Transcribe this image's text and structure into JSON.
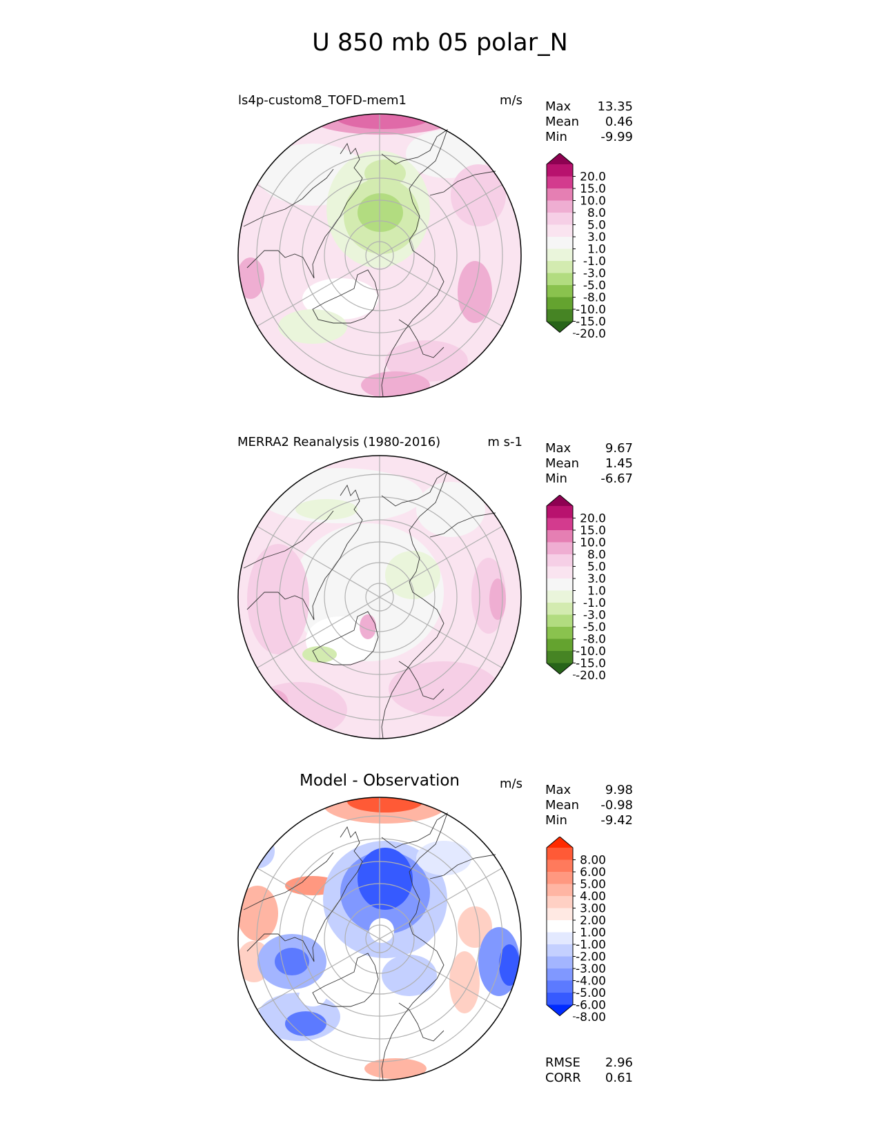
{
  "suptitle": "U 850 mb 05 polar_N",
  "panels": [
    {
      "title": "ls4p-custom8_TOFD-mem1",
      "units": "m/s",
      "stats": [
        {
          "label": "Max",
          "value": "13.35"
        },
        {
          "label": "Mean",
          "value": "0.46"
        },
        {
          "label": "Min",
          "value": "-9.99"
        }
      ],
      "colorbar": {
        "ticks": [
          "20.0",
          "15.0",
          "10.0",
          "8.0",
          "5.0",
          "3.0",
          "1.0",
          "-1.0",
          "-3.0",
          "-5.0",
          "-8.0",
          "-10.0",
          "-15.0",
          "-20.0"
        ],
        "colors": [
          "#8e0152",
          "#b8126e",
          "#d33b8e",
          "#e57fb3",
          "#efaed2",
          "#f6cfe6",
          "#fae4f0",
          "#f6f6f6",
          "#eaf5db",
          "#d3ebb0",
          "#b2dc80",
          "#8ac24e",
          "#64a32f",
          "#468424",
          "#276419"
        ]
      }
    },
    {
      "title": "MERRA2 Reanalysis (1980-2016)",
      "units": "m s-1",
      "stats": [
        {
          "label": "Max",
          "value": "9.67"
        },
        {
          "label": "Mean",
          "value": "1.45"
        },
        {
          "label": "Min",
          "value": "-6.67"
        }
      ],
      "colorbar": {
        "ticks": [
          "20.0",
          "15.0",
          "10.0",
          "8.0",
          "5.0",
          "3.0",
          "1.0",
          "-1.0",
          "-3.0",
          "-5.0",
          "-8.0",
          "-10.0",
          "-15.0",
          "-20.0"
        ],
        "colors": [
          "#8e0152",
          "#b8126e",
          "#d33b8e",
          "#e57fb3",
          "#efaed2",
          "#f6cfe6",
          "#fae4f0",
          "#f6f6f6",
          "#eaf5db",
          "#d3ebb0",
          "#b2dc80",
          "#8ac24e",
          "#64a32f",
          "#468424",
          "#276419"
        ]
      }
    },
    {
      "title": "Model - Observation",
      "units": "m/s",
      "stats": [
        {
          "label": "Max",
          "value": "9.98"
        },
        {
          "label": "Mean",
          "value": "-0.98"
        },
        {
          "label": "Min",
          "value": "-9.42"
        }
      ],
      "metrics": [
        {
          "label": "RMSE",
          "value": "2.96"
        },
        {
          "label": "CORR",
          "value": "0.61"
        }
      ],
      "colorbar": {
        "ticks": [
          "8.00",
          "6.00",
          "5.00",
          "4.00",
          "3.00",
          "2.00",
          "1.00",
          "-1.00",
          "-2.00",
          "-3.00",
          "-4.00",
          "-5.00",
          "-6.00",
          "-8.00"
        ],
        "colors": [
          "#ff2b00",
          "#ff5a36",
          "#ff7a5c",
          "#ff9880",
          "#ffb5a3",
          "#ffd0c4",
          "#ffe9e3",
          "#ffffff",
          "#e3e9ff",
          "#c4d0ff",
          "#a3b5ff",
          "#8098ff",
          "#5c7aff",
          "#365aff",
          "#002bff"
        ]
      }
    }
  ],
  "chart_data": [
    {
      "type": "heatmap",
      "projection": "north polar stereographic",
      "title": "ls4p-custom8_TOFD-mem1",
      "variable": "U 850 mb",
      "units": "m/s",
      "levels": [
        -20.0,
        -15.0,
        -10.0,
        -8.0,
        -5.0,
        -3.0,
        -1.0,
        1.0,
        3.0,
        5.0,
        8.0,
        10.0,
        15.0,
        20.0
      ],
      "max": 13.35,
      "mean": 0.46,
      "min": -9.99
    },
    {
      "type": "heatmap",
      "projection": "north polar stereographic",
      "title": "MERRA2 Reanalysis (1980-2016)",
      "variable": "U 850 mb",
      "units": "m s-1",
      "levels": [
        -20.0,
        -15.0,
        -10.0,
        -8.0,
        -5.0,
        -3.0,
        -1.0,
        1.0,
        3.0,
        5.0,
        8.0,
        10.0,
        15.0,
        20.0
      ],
      "max": 9.67,
      "mean": 1.45,
      "min": -6.67
    },
    {
      "type": "heatmap",
      "projection": "north polar stereographic",
      "title": "Model - Observation",
      "variable": "U 850 mb",
      "units": "m/s",
      "levels": [
        -8.0,
        -6.0,
        -5.0,
        -4.0,
        -3.0,
        -2.0,
        -1.0,
        1.0,
        2.0,
        3.0,
        4.0,
        5.0,
        6.0,
        8.0
      ],
      "max": 9.98,
      "mean": -0.98,
      "min": -9.42,
      "rmse": 2.96,
      "corr": 0.61
    }
  ]
}
